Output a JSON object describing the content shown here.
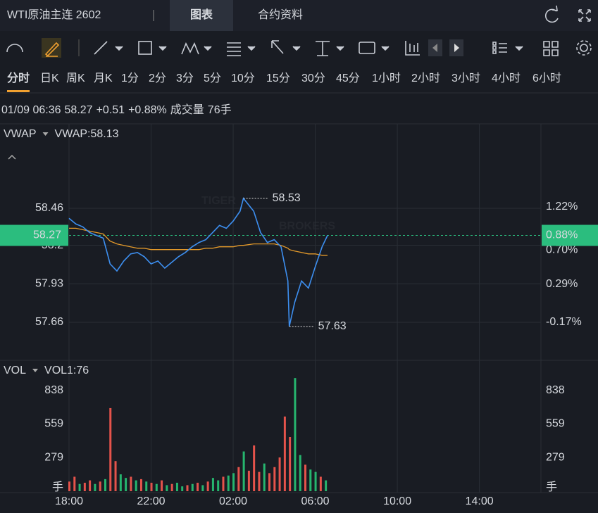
{
  "ui": {
    "symbol": "WTI原油主连 2602",
    "tabs": [
      "图表",
      "合约资料"
    ],
    "timeframes": [
      "分时",
      "日K",
      "周K",
      "月K",
      "1分",
      "2分",
      "3分",
      "5分",
      "10分",
      "15分",
      "30分",
      "45分",
      "1小时",
      "2小时",
      "3小时",
      "4小时",
      "6小时"
    ],
    "info": {
      "time": "01/09 06:36",
      "price": "58.27",
      "change": "+0.51",
      "change_pct": "+0.88%",
      "volume_label": "成交量",
      "volume": "76手"
    },
    "watermark": [
      "TIGER",
      "BROKERS"
    ]
  },
  "chart_data": [
    {
      "type": "line",
      "indicator": "VWAP",
      "legend_value": "VWAP:58.13",
      "x": [
        "18:00",
        "18:20",
        "18:40",
        "19:00",
        "19:20",
        "19:40",
        "20:00",
        "20:20",
        "20:40",
        "21:00",
        "21:20",
        "21:40",
        "22:00",
        "22:20",
        "22:40",
        "23:00",
        "23:20",
        "23:40",
        "00:00",
        "00:20",
        "00:40",
        "01:00",
        "01:20",
        "01:40",
        "02:00",
        "02:20",
        "02:30",
        "03:00",
        "03:20",
        "03:40",
        "04:00",
        "04:20",
        "04:40",
        "04:44",
        "05:00",
        "05:20",
        "05:40",
        "06:00",
        "06:20",
        "06:36"
      ],
      "series": [
        {
          "color": "#3d8ff0",
          "values": [
            58.39,
            58.35,
            58.33,
            58.29,
            58.27,
            58.25,
            58.07,
            58.02,
            58.09,
            58.14,
            58.15,
            58.12,
            58.07,
            58.09,
            58.04,
            58.08,
            58.12,
            58.15,
            58.19,
            58.22,
            58.24,
            58.29,
            58.34,
            58.32,
            58.37,
            58.44,
            58.53,
            58.44,
            58.29,
            58.22,
            58.24,
            58.19,
            57.95,
            57.63,
            57.8,
            57.95,
            57.9,
            58.05,
            58.19,
            58.27
          ]
        },
        {
          "name": "VWAP",
          "color": "#e59a2a",
          "values": [
            58.32,
            58.32,
            58.31,
            58.3,
            58.29,
            58.28,
            58.23,
            58.21,
            58.2,
            58.19,
            58.18,
            58.18,
            58.17,
            58.17,
            58.17,
            58.17,
            58.17,
            58.17,
            58.17,
            58.17,
            58.18,
            58.18,
            58.19,
            58.19,
            58.19,
            58.2,
            58.2,
            58.21,
            58.21,
            58.21,
            58.21,
            58.2,
            58.18,
            58.17,
            58.16,
            58.15,
            58.14,
            58.14,
            58.13,
            58.13
          ]
        }
      ],
      "annotations": [
        {
          "x": "02:30",
          "value": 58.53
        },
        {
          "x": "04:44",
          "value": 57.63
        }
      ],
      "price_line": {
        "value": 58.27,
        "right_label": "0.88%",
        "color": "#2bbd7e"
      },
      "xlim": [
        "18:00",
        "17:00"
      ],
      "xticks": [
        "18:00",
        "22:00",
        "02:00",
        "06:00",
        "10:00",
        "14:00"
      ],
      "ylim": [
        57.393,
        59.053
      ],
      "yticks": [
        58.46,
        58.2,
        57.93,
        57.66
      ],
      "y2lim": [
        -0.63,
        2.22
      ],
      "y2ticks": [
        {
          "value": 1.22,
          "label": "1.22%"
        },
        {
          "value": 0.7,
          "label": "0.70%"
        },
        {
          "value": 0.29,
          "label": "0.29%"
        },
        {
          "value": -0.17,
          "label": "-0.17%"
        }
      ],
      "grid": true
    },
    {
      "type": "bar",
      "indicator": "VOL",
      "legend_value": "VOL1:76",
      "x": [
        "18:00",
        "18:15",
        "18:30",
        "18:45",
        "19:00",
        "19:15",
        "19:30",
        "19:45",
        "20:00",
        "20:15",
        "20:30",
        "20:45",
        "21:00",
        "21:15",
        "21:30",
        "21:45",
        "22:00",
        "22:15",
        "22:30",
        "22:45",
        "23:00",
        "23:15",
        "23:30",
        "23:45",
        "00:00",
        "00:15",
        "00:30",
        "00:45",
        "01:00",
        "01:15",
        "01:30",
        "01:45",
        "02:00",
        "02:15",
        "02:30",
        "02:45",
        "03:00",
        "03:15",
        "03:30",
        "03:45",
        "04:00",
        "04:15",
        "04:30",
        "04:45",
        "05:00",
        "05:15",
        "05:30",
        "05:45",
        "06:00",
        "06:15",
        "06:30"
      ],
      "values": [
        80,
        120,
        60,
        70,
        90,
        60,
        80,
        100,
        690,
        250,
        140,
        110,
        120,
        90,
        100,
        80,
        70,
        60,
        90,
        50,
        60,
        70,
        40,
        50,
        60,
        70,
        50,
        80,
        110,
        90,
        120,
        130,
        150,
        200,
        330,
        170,
        380,
        160,
        230,
        150,
        200,
        280,
        620,
        450,
        940,
        300,
        220,
        180,
        160,
        120,
        90
      ],
      "colors": [
        "#e5534b",
        "#e5534b",
        "#26b56e",
        "#e5534b",
        "#e5534b",
        "#26b56e",
        "#e5534b",
        "#26b56e",
        "#e5534b",
        "#e5534b",
        "#26b56e",
        "#26b56e",
        "#e5534b",
        "#26b56e",
        "#e5534b",
        "#26b56e",
        "#e5534b",
        "#26b56e",
        "#e5534b",
        "#26b56e",
        "#e5534b",
        "#26b56e",
        "#26b56e",
        "#e5534b",
        "#26b56e",
        "#e5534b",
        "#26b56e",
        "#e5534b",
        "#26b56e",
        "#26b56e",
        "#e5534b",
        "#26b56e",
        "#26b56e",
        "#e5534b",
        "#26b56e",
        "#e5534b",
        "#e5534b",
        "#e5534b",
        "#26b56e",
        "#e5534b",
        "#e5534b",
        "#e5534b",
        "#e5534b",
        "#e5534b",
        "#26b56e",
        "#26b56e",
        "#e5534b",
        "#26b56e",
        "#26b56e",
        "#e5534b",
        "#26b56e"
      ],
      "ylim": [
        0,
        1087
      ],
      "yticks": [
        {
          "value": 0,
          "label": "手"
        },
        279,
        559,
        838
      ]
    }
  ]
}
